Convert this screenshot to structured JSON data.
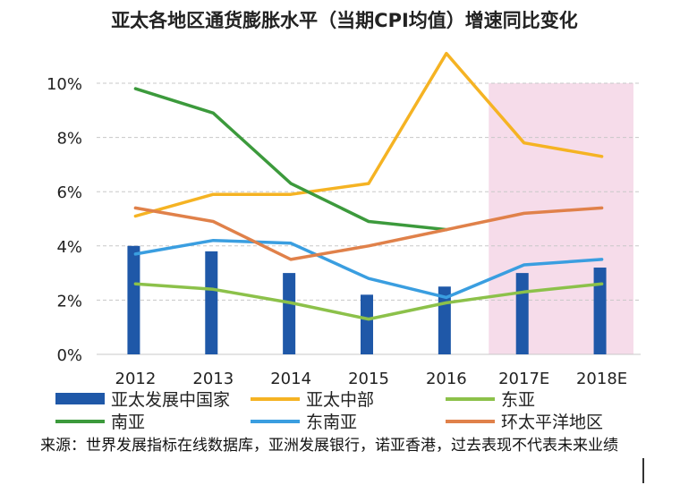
{
  "chart_data": {
    "type": "bar+line",
    "title": "亚太各地区通货膨胀水平（当期CPI均值）增速同比变化",
    "categories": [
      "2012",
      "2013",
      "2014",
      "2015",
      "2016",
      "2017E",
      "2018E"
    ],
    "ylim": [
      0,
      10
    ],
    "yticks": [
      "0%",
      "2%",
      "4%",
      "6%",
      "8%",
      "10%"
    ],
    "grid": "horizontal-dashed",
    "shaded_categories": [
      "2017E",
      "2018E"
    ],
    "shade_color": "#f6dcea",
    "legend_placement": "bottom",
    "series": [
      {
        "name": "亚太发展中国家",
        "kind": "bar",
        "color": "#1f58a8",
        "values": [
          4.0,
          3.8,
          3.0,
          2.2,
          2.5,
          3.0,
          3.2
        ]
      },
      {
        "name": "亚太中部",
        "kind": "line",
        "color": "#f5b323",
        "values": [
          5.1,
          5.9,
          5.9,
          6.3,
          11.1,
          7.8,
          7.3
        ]
      },
      {
        "name": "东亚",
        "kind": "line",
        "color": "#8cc14a",
        "values": [
          2.6,
          2.4,
          1.9,
          1.3,
          1.9,
          2.3,
          2.6
        ]
      },
      {
        "name": "南亚",
        "kind": "line",
        "color": "#3c9a3c",
        "values": [
          9.8,
          8.9,
          6.3,
          4.9,
          4.6,
          null,
          null
        ]
      },
      {
        "name": "东南亚",
        "kind": "line",
        "color": "#3a9ee0",
        "values": [
          3.7,
          4.2,
          4.1,
          2.8,
          2.1,
          3.3,
          3.5
        ]
      },
      {
        "name": "环太平洋地区",
        "kind": "line",
        "color": "#e0814a",
        "values": [
          5.4,
          4.9,
          3.5,
          4.0,
          4.6,
          5.2,
          5.4
        ]
      }
    ]
  },
  "source_text": "来源：世界发展指标在线数据库，亚洲发展银行，诺亚香港，过去表现不代表未来业绩"
}
